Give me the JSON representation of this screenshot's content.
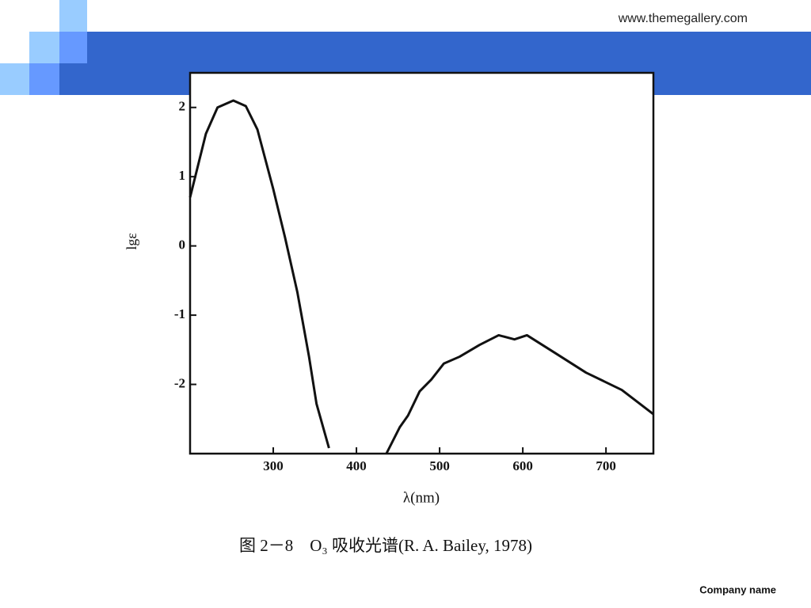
{
  "slide": {
    "url": "www.themegallery.com",
    "footer": "Company name"
  },
  "chart_data": {
    "type": "line",
    "x_label": "λ(nm)",
    "y_label": "lgε",
    "caption": "图 2－8　O₃ 吸收光谱(R. A. Bailey, 1978)",
    "xlim": [
      200,
      757
    ],
    "ylim": [
      -3,
      2.5
    ],
    "xticks": [
      300,
      400,
      500,
      600,
      700
    ],
    "yticks": [
      -2,
      -1,
      0,
      1,
      2
    ],
    "x": [
      200,
      219,
      233,
      252,
      267,
      281,
      300,
      314,
      329,
      343,
      352,
      367,
      400,
      436,
      452,
      462,
      476,
      490,
      505,
      524,
      548,
      571,
      590,
      605,
      638,
      676,
      719,
      757
    ],
    "series": [
      {
        "color": "#111111",
        "values": [
          0.7,
          1.62,
          2.0,
          2.1,
          2.02,
          1.68,
          0.82,
          0.13,
          -0.67,
          -1.6,
          -2.28,
          -2.92,
          null,
          -3.0,
          -2.62,
          -2.45,
          -2.1,
          -1.93,
          -1.7,
          -1.6,
          -1.43,
          -1.29,
          -1.35,
          -1.29,
          -1.54,
          -1.83,
          -2.08,
          -2.43
        ]
      }
    ]
  }
}
